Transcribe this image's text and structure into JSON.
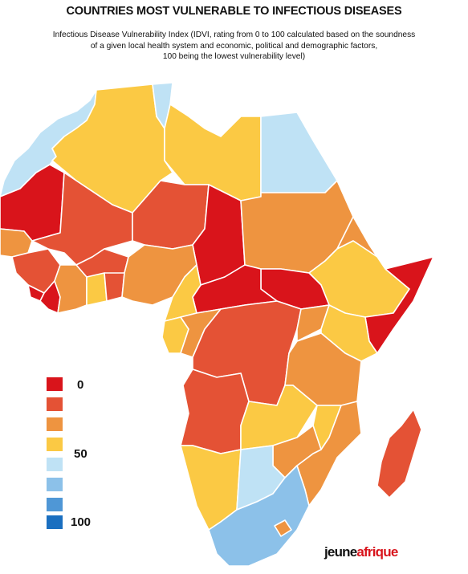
{
  "title": "COUNTRIES MOST VULNERABLE TO INFECTIOUS DISEASES",
  "subtitle": [
    "Infectious Disease Vulnerability Index (IDVI, rating from 0 to 100 calculated based on the soundness",
    "of a given local health system and economic, political and demographic factors,",
    "100 being the lowest vulnerability level)"
  ],
  "legend": {
    "swatches": [
      {
        "color": "#d9141b",
        "label": "0"
      },
      {
        "color": "#e45235",
        "label": ""
      },
      {
        "color": "#ee9440",
        "label": ""
      },
      {
        "color": "#fbc944",
        "label": "50"
      },
      {
        "color": "#bfe2f5",
        "label": "50"
      },
      {
        "color": "#8cc1e9",
        "label": ""
      },
      {
        "color": "#4f97d6",
        "label": ""
      },
      {
        "color": "#1a6fc0",
        "label": "100"
      }
    ]
  },
  "brand": {
    "part1": "jeune",
    "part2": "afrique"
  },
  "colors": {
    "c0": "#d9141b",
    "c1": "#e45235",
    "c2": "#ee9440",
    "c3": "#fbc944",
    "c4": "#bfe2f5",
    "c5": "#8cc1e9"
  }
}
